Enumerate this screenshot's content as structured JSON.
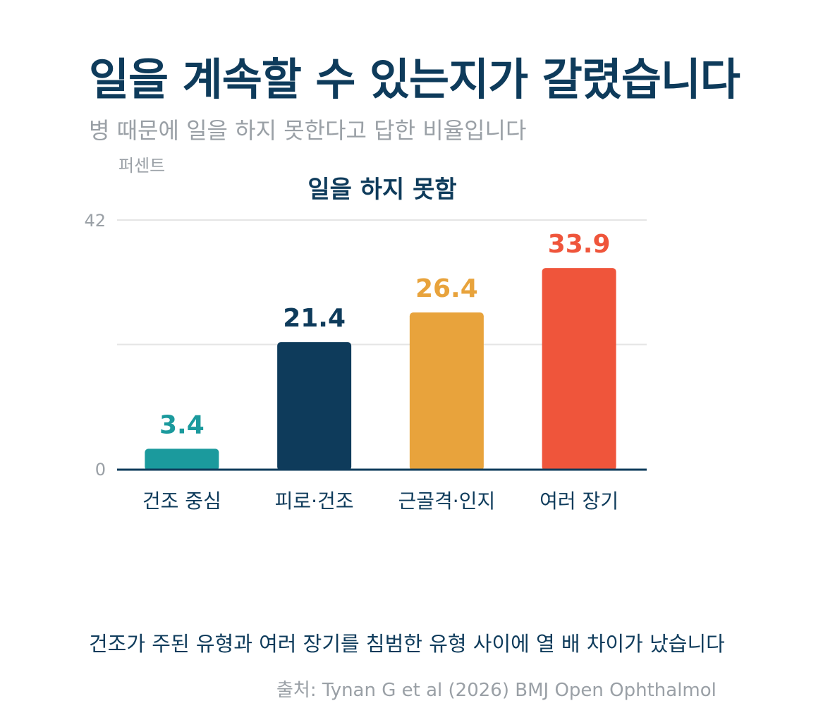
{
  "header": {
    "title": "일을 계속할 수 있는지가 갈렸습니다",
    "subtitle": "병 때문에 일을 하지 못한다고 답한 비율입니다"
  },
  "chart_data": {
    "type": "bar",
    "title": "일을 하지 못함",
    "ylabel": "퍼센트",
    "xlabel": "",
    "ylim": [
      0,
      42
    ],
    "yticks": [
      0,
      42
    ],
    "grid": true,
    "categories": [
      "건조 중심",
      "피로·건조",
      "근골격·인지",
      "여러 장기"
    ],
    "values": [
      3.4,
      21.4,
      26.4,
      33.9
    ],
    "data_labels": [
      "3.4",
      "21.4",
      "26.4",
      "33.9"
    ],
    "colors": [
      "#1b9a9d",
      "#0e3b5b",
      "#e8a33c",
      "#ef553b"
    ],
    "axis_color": "#0e3b5b",
    "grid_color": "#e5e5e5"
  },
  "footer": {
    "takeaway": "건조가 주된 유형과 여러 장기를 침범한 유형 사이에 열 배 차이가 났습니다",
    "source": "출처: Tynan G et al (2026) BMJ Open Ophthalmol"
  }
}
